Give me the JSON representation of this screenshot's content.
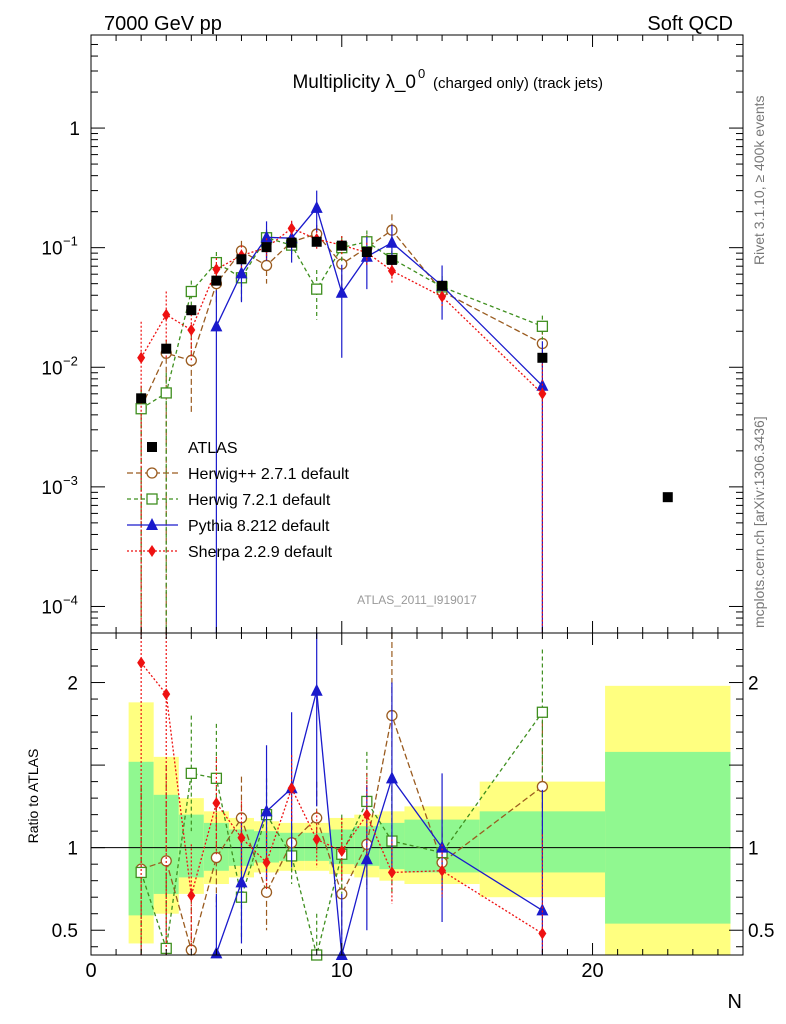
{
  "header": {
    "left": "7000 GeV pp",
    "right": "Soft QCD"
  },
  "side_texts": {
    "rivet": "Rivet 3.1.10, ≥ 400k events",
    "mcplots": "mcplots.cern.ch [arXiv:1306.3436]"
  },
  "chart_data": {
    "type": "scatter",
    "title_main": "Multiplicity λ_0",
    "title_sup": "0",
    "title_sub": "(charged only) (track jets)",
    "analysis_id": "ATLAS_2011_I919017",
    "xlabel": "N",
    "ratio_ylabel": "Ratio to ATLAS",
    "xlim": [
      0,
      26
    ],
    "ylim_log": [
      6e-05,
      6
    ],
    "ratio_ylim": [
      0.35,
      2.3
    ],
    "main_yticks": [
      {
        "v": 1,
        "label": "1",
        "exp": ""
      },
      {
        "v": 0.1,
        "label": "10",
        "exp": "−1"
      },
      {
        "v": 0.01,
        "label": "10",
        "exp": "−2"
      },
      {
        "v": 0.001,
        "label": "10",
        "exp": "−3"
      },
      {
        "v": 0.0001,
        "label": "10",
        "exp": "−4"
      }
    ],
    "ratio_yticks": [
      {
        "v": 0.5,
        "label": "0.5"
      },
      {
        "v": 1,
        "label": "1"
      },
      {
        "v": 2,
        "label": "2"
      }
    ],
    "xticks": [
      {
        "v": 0,
        "label": "0"
      },
      {
        "v": 10,
        "label": "10"
      },
      {
        "v": 20,
        "label": "20"
      }
    ],
    "bands": [
      {
        "x0": 1.5,
        "x1": 2.5,
        "y_lo": 0.42,
        "y_hi": 1.88,
        "g_lo": 0.59,
        "g_hi": 1.52
      },
      {
        "x0": 2.5,
        "x1": 3.5,
        "y_lo": 0.6,
        "y_hi": 1.55,
        "g_lo": 0.72,
        "g_hi": 1.32
      },
      {
        "x0": 3.5,
        "x1": 4.5,
        "y_lo": 0.72,
        "y_hi": 1.3,
        "g_lo": 0.82,
        "g_hi": 1.2
      },
      {
        "x0": 4.5,
        "x1": 5.5,
        "y_lo": 0.78,
        "y_hi": 1.22,
        "g_lo": 0.86,
        "g_hi": 1.15
      },
      {
        "x0": 5.5,
        "x1": 6.5,
        "y_lo": 0.82,
        "y_hi": 1.18,
        "g_lo": 0.89,
        "g_hi": 1.11
      },
      {
        "x0": 6.5,
        "x1": 7.5,
        "y_lo": 0.85,
        "y_hi": 1.16,
        "g_lo": 0.91,
        "g_hi": 1.1
      },
      {
        "x0": 7.5,
        "x1": 8.5,
        "y_lo": 0.86,
        "y_hi": 1.15,
        "g_lo": 0.92,
        "g_hi": 1.09
      },
      {
        "x0": 8.5,
        "x1": 9.5,
        "y_lo": 0.86,
        "y_hi": 1.15,
        "g_lo": 0.92,
        "g_hi": 1.09
      },
      {
        "x0": 9.5,
        "x1": 10.5,
        "y_lo": 0.84,
        "y_hi": 1.18,
        "g_lo": 0.9,
        "g_hi": 1.11
      },
      {
        "x0": 10.5,
        "x1": 11.5,
        "y_lo": 0.82,
        "y_hi": 1.2,
        "g_lo": 0.89,
        "g_hi": 1.13
      },
      {
        "x0": 11.5,
        "x1": 12.5,
        "y_lo": 0.8,
        "y_hi": 1.22,
        "g_lo": 0.87,
        "g_hi": 1.15
      },
      {
        "x0": 12.5,
        "x1": 15.5,
        "y_lo": 0.78,
        "y_hi": 1.25,
        "g_lo": 0.85,
        "g_hi": 1.17
      },
      {
        "x0": 15.5,
        "x1": 20.5,
        "y_lo": 0.7,
        "y_hi": 1.4,
        "g_lo": 0.85,
        "g_hi": 1.22
      },
      {
        "x0": 20.5,
        "x1": 25.5,
        "y_lo": 0.3,
        "y_hi": 1.98,
        "g_lo": 0.54,
        "g_hi": 1.58
      }
    ],
    "data": {
      "name": "ATLAS",
      "color": "#000000",
      "points": [
        {
          "x": 2,
          "y": 0.0055
        },
        {
          "x": 3,
          "y": 0.0143
        },
        {
          "x": 4,
          "y": 0.03
        },
        {
          "x": 5,
          "y": 0.053
        },
        {
          "x": 6,
          "y": 0.08
        },
        {
          "x": 7,
          "y": 0.101
        },
        {
          "x": 8,
          "y": 0.11
        },
        {
          "x": 9,
          "y": 0.112
        },
        {
          "x": 10,
          "y": 0.104
        },
        {
          "x": 11,
          "y": 0.092
        },
        {
          "x": 12,
          "y": 0.079
        },
        {
          "x": 14,
          "y": 0.048
        },
        {
          "x": 18,
          "y": 0.012
        },
        {
          "x": 23,
          "y": 0.00082
        }
      ]
    },
    "series": [
      {
        "name": "Herwig++ 2.7.1 default",
        "color": "#9a5b1f",
        "marker": "circle",
        "dash": "6,3",
        "points": [
          {
            "x": 2,
            "y": 0.0046,
            "lo": 0.0,
            "hi": 0.007,
            "r": 0.87,
            "rlo": 0.35,
            "rhi": 1.38
          },
          {
            "x": 3,
            "y": 0.0131,
            "lo": 0.0,
            "hi": 0.017,
            "r": 0.92,
            "rlo": 0.35,
            "rhi": 1.5
          },
          {
            "x": 4,
            "y": 0.0114,
            "lo": 0.004,
            "hi": 0.019,
            "r": 0.38,
            "rlo": 0.35,
            "rhi": 0.75
          },
          {
            "x": 5,
            "y": 0.05,
            "lo": 0.034,
            "hi": 0.066,
            "r": 0.94,
            "rlo": 0.64,
            "rhi": 1.25
          },
          {
            "x": 6,
            "y": 0.094,
            "lo": 0.074,
            "hi": 0.114,
            "r": 1.18,
            "rlo": 0.92,
            "rhi": 1.43
          },
          {
            "x": 7,
            "y": 0.071,
            "lo": 0.05,
            "hi": 0.092,
            "r": 0.73,
            "rlo": 0.5,
            "rhi": 0.95
          },
          {
            "x": 8,
            "y": 0.112,
            "lo": 0.092,
            "hi": 0.132,
            "r": 1.03,
            "rlo": 0.85,
            "rhi": 1.2
          },
          {
            "x": 9,
            "y": 0.13,
            "lo": 0.105,
            "hi": 0.155,
            "r": 1.18,
            "rlo": 0.97,
            "rhi": 1.4
          },
          {
            "x": 10,
            "y": 0.073,
            "lo": 0.045,
            "hi": 0.1,
            "r": 0.72,
            "rlo": 0.45,
            "rhi": 1.0
          },
          {
            "x": 11,
            "y": 0.1,
            "lo": 0.072,
            "hi": 0.128,
            "r": 1.02,
            "rlo": 0.75,
            "rhi": 1.3
          },
          {
            "x": 12,
            "y": 0.14,
            "lo": 0.09,
            "hi": 0.19,
            "r": 1.8,
            "rlo": 1.2,
            "rhi": 2.35
          },
          {
            "x": 14,
            "y": 0.043,
            "lo": 0.032,
            "hi": 0.054,
            "r": 0.91,
            "rlo": 0.72,
            "rhi": 1.1
          },
          {
            "x": 18,
            "y": 0.0158,
            "lo": 0.01,
            "hi": 0.021,
            "r": 1.37,
            "rlo": 0.92,
            "rhi": 1.82
          }
        ]
      },
      {
        "name": "Herwig 7.2.1 default",
        "color": "#3f8f1f",
        "marker": "square",
        "dash": "4,3",
        "points": [
          {
            "x": 2,
            "y": 0.0045,
            "lo": 0.0,
            "hi": 0.0065,
            "r": 0.85,
            "rlo": 0.35,
            "rhi": 1.36
          },
          {
            "x": 3,
            "y": 0.0061,
            "lo": 0.0,
            "hi": 0.009,
            "r": 0.39,
            "rlo": 0.35,
            "rhi": 0.85
          },
          {
            "x": 4,
            "y": 0.043,
            "lo": 0.033,
            "hi": 0.053,
            "r": 1.45,
            "rlo": 1.1,
            "rhi": 1.8
          },
          {
            "x": 5,
            "y": 0.075,
            "lo": 0.058,
            "hi": 0.092,
            "r": 1.42,
            "rlo": 1.1,
            "rhi": 1.75
          },
          {
            "x": 6,
            "y": 0.056,
            "lo": 0.036,
            "hi": 0.076,
            "r": 0.7,
            "rlo": 0.45,
            "rhi": 0.95
          },
          {
            "x": 7,
            "y": 0.121,
            "lo": 0.1,
            "hi": 0.142,
            "r": 1.2,
            "rlo": 0.98,
            "rhi": 1.42
          },
          {
            "x": 8,
            "y": 0.105,
            "lo": 0.085,
            "hi": 0.125,
            "r": 0.95,
            "rlo": 0.78,
            "rhi": 1.13
          },
          {
            "x": 9,
            "y": 0.045,
            "lo": 0.025,
            "hi": 0.065,
            "r": 0.35,
            "rlo": 0.35,
            "rhi": 0.6
          },
          {
            "x": 10,
            "y": 0.1,
            "lo": 0.075,
            "hi": 0.125,
            "r": 0.96,
            "rlo": 0.72,
            "rhi": 1.2
          },
          {
            "x": 11,
            "y": 0.112,
            "lo": 0.085,
            "hi": 0.139,
            "r": 1.28,
            "rlo": 0.98,
            "rhi": 1.58
          },
          {
            "x": 12,
            "y": 0.081,
            "lo": 0.055,
            "hi": 0.107,
            "r": 1.04,
            "rlo": 0.72,
            "rhi": 1.35
          },
          {
            "x": 14,
            "y": 0.047,
            "lo": 0.036,
            "hi": 0.058,
            "r": 0.97,
            "rlo": 0.78,
            "rhi": 1.17
          },
          {
            "x": 18,
            "y": 0.022,
            "lo": 0.017,
            "hi": 0.027,
            "r": 1.82,
            "rlo": 1.42,
            "rhi": 2.2
          }
        ]
      },
      {
        "name": "Pythia 8.212 default",
        "color": "#1a1acc",
        "marker": "triangle",
        "dash": "",
        "points": [
          {
            "x": 5,
            "y": 0.022,
            "lo": 0.0,
            "hi": 0.044,
            "r": 0.36,
            "rlo": 0.35,
            "rhi": 0.72
          },
          {
            "x": 6,
            "y": 0.061,
            "lo": 0.035,
            "hi": 0.087,
            "r": 0.79,
            "rlo": 0.42,
            "rhi": 1.15
          },
          {
            "x": 7,
            "y": 0.122,
            "lo": 0.078,
            "hi": 0.166,
            "r": 1.22,
            "rlo": 0.8,
            "rhi": 1.62
          },
          {
            "x": 8,
            "y": 0.12,
            "lo": 0.075,
            "hi": 0.165,
            "r": 1.36,
            "rlo": 0.88,
            "rhi": 1.82
          },
          {
            "x": 9,
            "y": 0.215,
            "lo": 0.135,
            "hi": 0.3,
            "r": 1.95,
            "rlo": 1.25,
            "rhi": 2.6
          },
          {
            "x": 10,
            "y": 0.042,
            "lo": 0.012,
            "hi": 0.072,
            "r": 0.35,
            "rlo": 0.35,
            "rhi": 0.72
          },
          {
            "x": 11,
            "y": 0.084,
            "lo": 0.045,
            "hi": 0.123,
            "r": 0.93,
            "rlo": 0.5,
            "rhi": 1.38
          },
          {
            "x": 12,
            "y": 0.11,
            "lo": 0.065,
            "hi": 0.155,
            "r": 1.42,
            "rlo": 0.85,
            "rhi": 2.0
          },
          {
            "x": 14,
            "y": 0.048,
            "lo": 0.025,
            "hi": 0.071,
            "r": 1.0,
            "rlo": 0.55,
            "rhi": 1.45
          },
          {
            "x": 18,
            "y": 0.007,
            "lo": 0.0,
            "hi": 0.0165,
            "r": 0.62,
            "rlo": 0.35,
            "rhi": 1.35
          }
        ]
      },
      {
        "name": "Sherpa 2.2.9 default",
        "color": "#ee1111",
        "marker": "diamond",
        "dash": "2,2",
        "points": [
          {
            "x": 2,
            "y": 0.012,
            "lo": 0.0,
            "hi": 0.024,
            "r": 2.12,
            "rlo": 0.35,
            "rhi": 2.35
          },
          {
            "x": 3,
            "y": 0.0275,
            "lo": 0.012,
            "hi": 0.043,
            "r": 1.93,
            "rlo": 0.35,
            "rhi": 2.35
          },
          {
            "x": 4,
            "y": 0.0205,
            "lo": 0.011,
            "hi": 0.03,
            "r": 0.71,
            "rlo": 0.38,
            "rhi": 1.02
          },
          {
            "x": 5,
            "y": 0.066,
            "lo": 0.05,
            "hi": 0.082,
            "r": 1.27,
            "rlo": 0.96,
            "rhi": 1.55
          },
          {
            "x": 6,
            "y": 0.086,
            "lo": 0.068,
            "hi": 0.104,
            "r": 1.06,
            "rlo": 0.86,
            "rhi": 1.28
          },
          {
            "x": 7,
            "y": 0.1,
            "lo": 0.08,
            "hi": 0.12,
            "r": 0.91,
            "rlo": 0.75,
            "rhi": 1.1
          },
          {
            "x": 8,
            "y": 0.145,
            "lo": 0.122,
            "hi": 0.168,
            "r": 1.36,
            "rlo": 1.16,
            "rhi": 1.56
          },
          {
            "x": 9,
            "y": 0.118,
            "lo": 0.098,
            "hi": 0.138,
            "r": 1.05,
            "rlo": 0.88,
            "rhi": 1.22
          },
          {
            "x": 10,
            "y": 0.105,
            "lo": 0.085,
            "hi": 0.125,
            "r": 0.98,
            "rlo": 0.8,
            "rhi": 1.18
          },
          {
            "x": 11,
            "y": 0.091,
            "lo": 0.072,
            "hi": 0.11,
            "r": 1.2,
            "rlo": 0.95,
            "rhi": 1.45
          },
          {
            "x": 12,
            "y": 0.064,
            "lo": 0.05,
            "hi": 0.078,
            "r": 0.85,
            "rlo": 0.66,
            "rhi": 1.05
          },
          {
            "x": 14,
            "y": 0.039,
            "lo": 0.032,
            "hi": 0.046,
            "r": 0.86,
            "rlo": 0.7,
            "rhi": 1.02
          },
          {
            "x": 18,
            "y": 0.006,
            "lo": 0.0,
            "hi": 0.0125,
            "r": 0.48,
            "rlo": 0.35,
            "rhi": 1.08
          }
        ]
      }
    ]
  }
}
